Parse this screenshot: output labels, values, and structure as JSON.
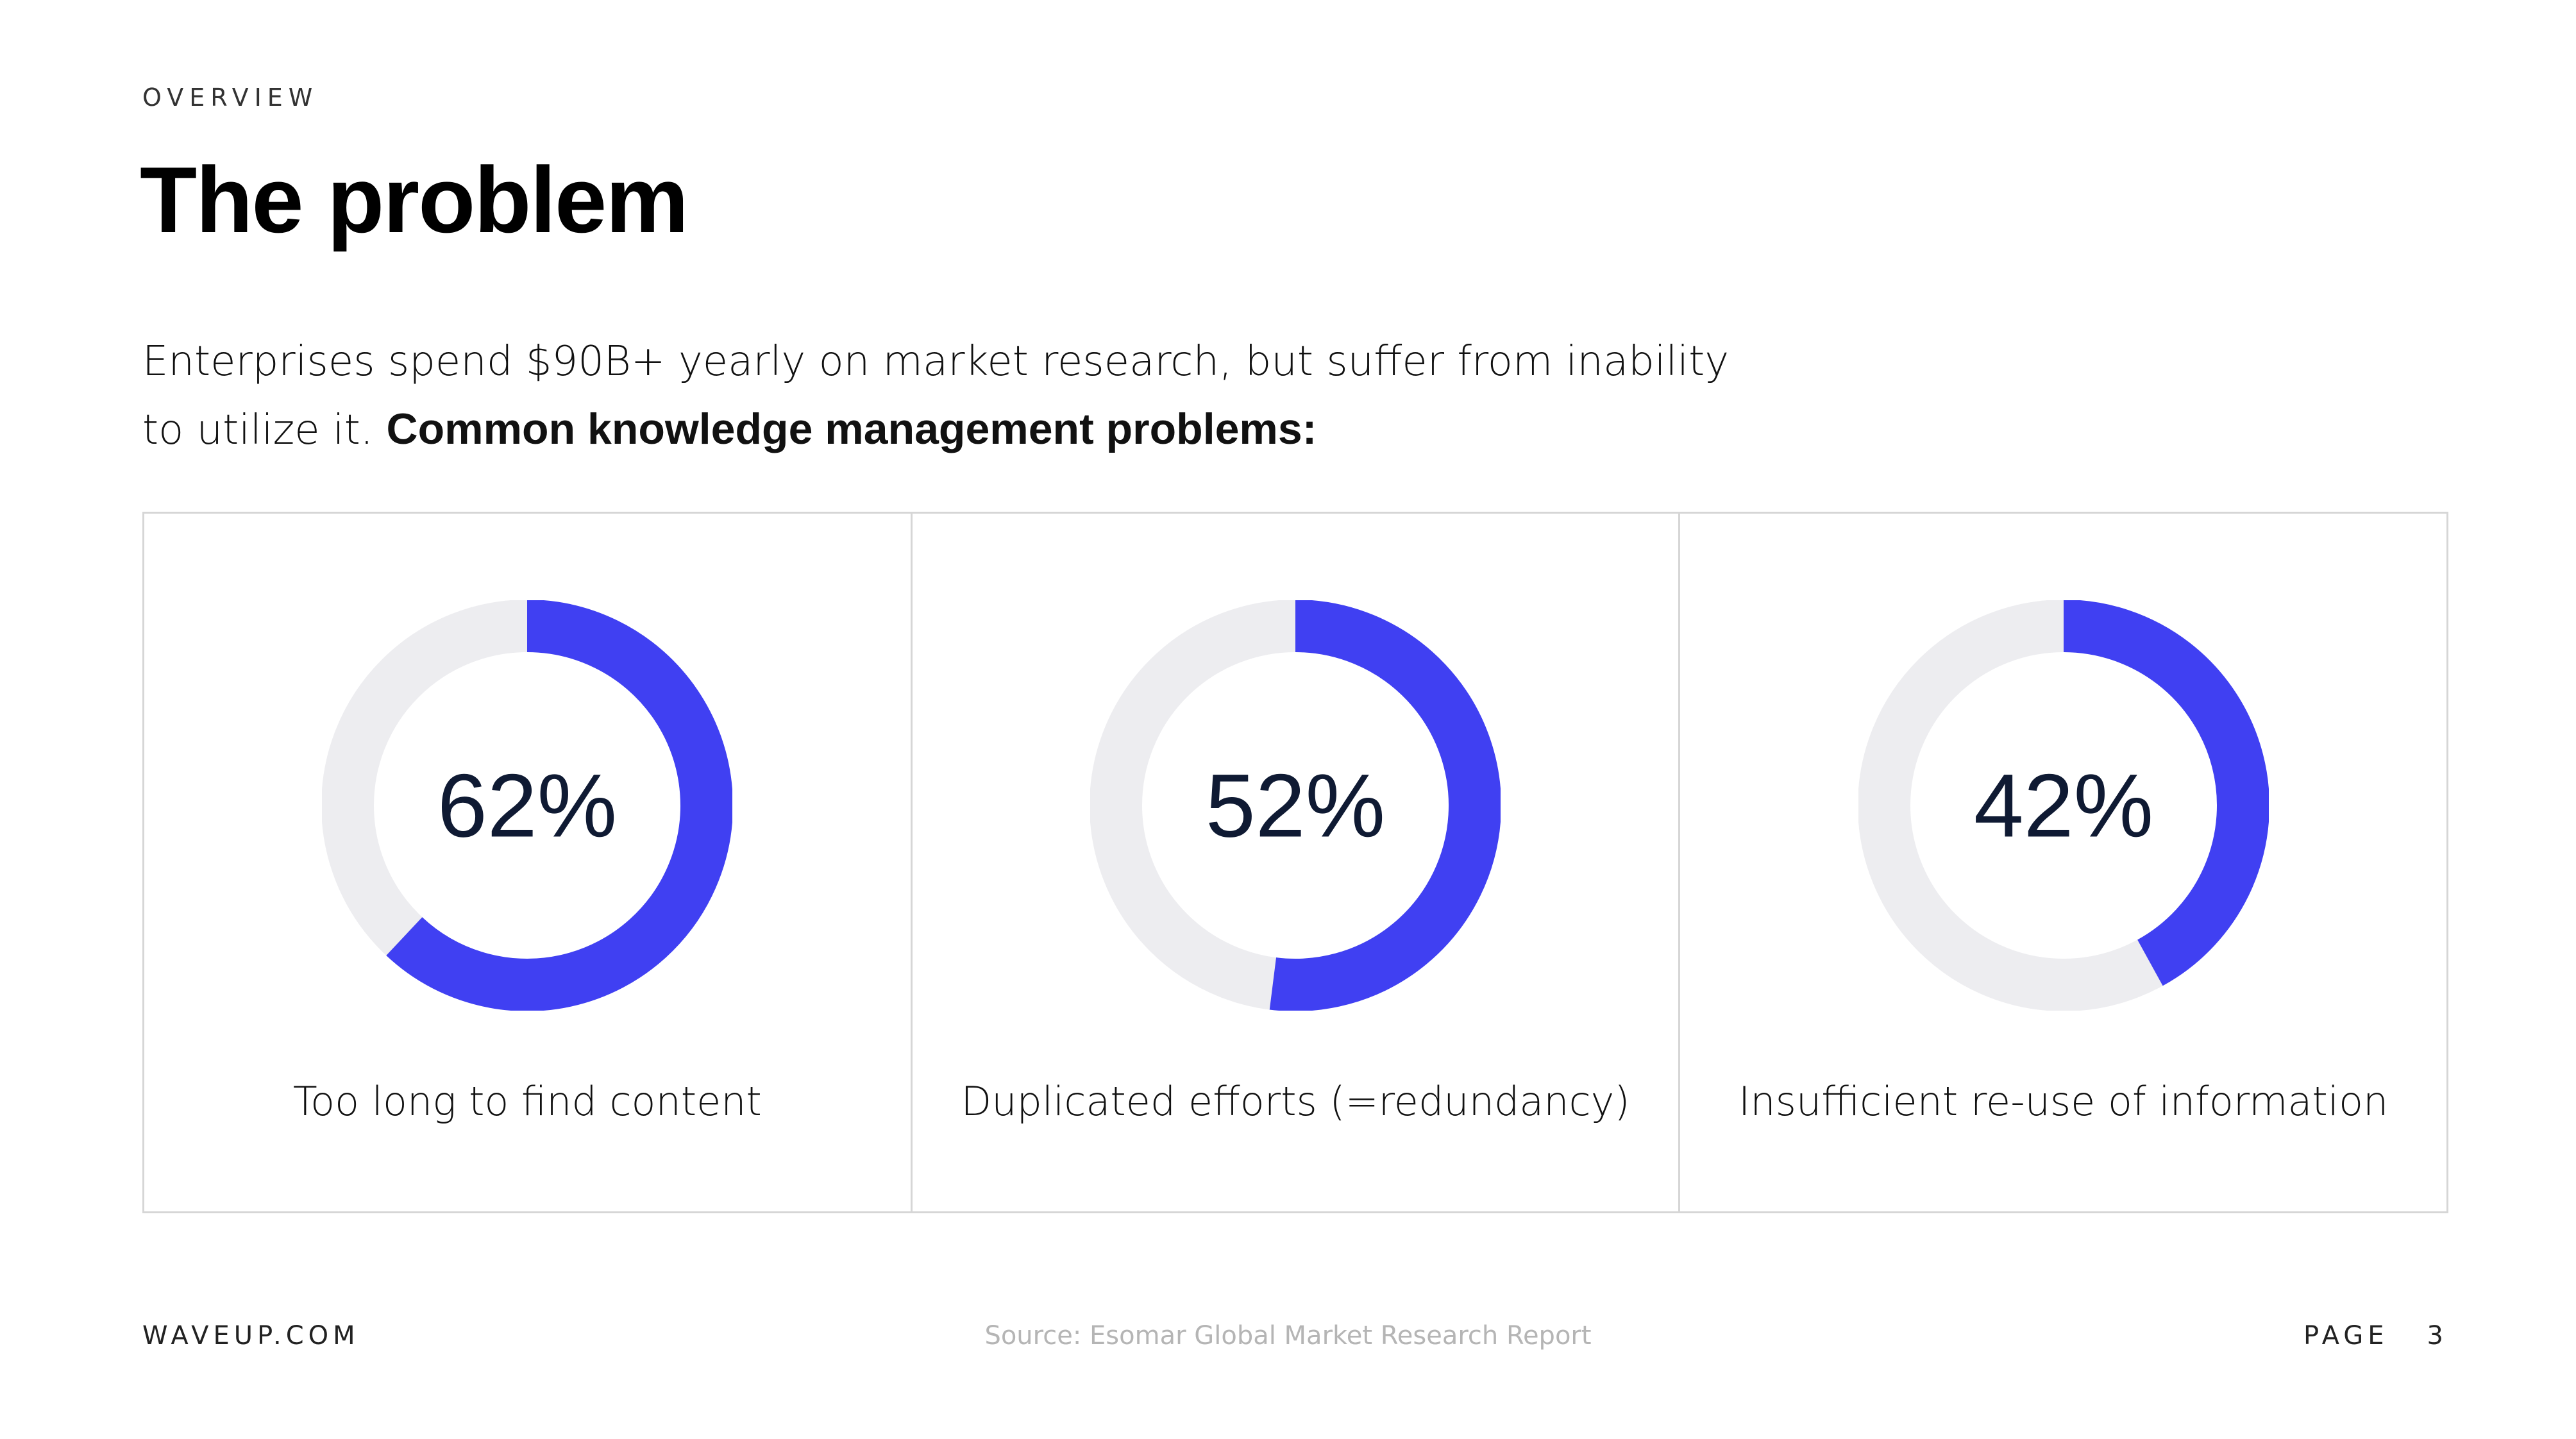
{
  "header": {
    "eyebrow": "OVERVIEW",
    "title": "The problem"
  },
  "intro": {
    "line1": "Enterprises spend $90B+ yearly on market research, but suffer from inability",
    "line2_prefix": "to utilize it. ",
    "line2_bold": "Common knowledge management problems:"
  },
  "colors": {
    "accent": "#4040f2",
    "track": "#ededf0",
    "value_text": "#0f1a33",
    "border": "#d6d6d6"
  },
  "chart_data": [
    {
      "type": "pie",
      "value": 62,
      "label": "62%",
      "caption": "Too long to find content"
    },
    {
      "type": "pie",
      "value": 52,
      "label": "52%",
      "caption": "Duplicated efforts (=redundancy)"
    },
    {
      "type": "pie",
      "value": 42,
      "label": "42%",
      "caption": "Insufficient re-use of information"
    }
  ],
  "footer": {
    "site": "WAVEUP.COM",
    "source": "Source: Esomar Global Market Research Report",
    "page_label": "PAGE",
    "page_number": "3"
  }
}
